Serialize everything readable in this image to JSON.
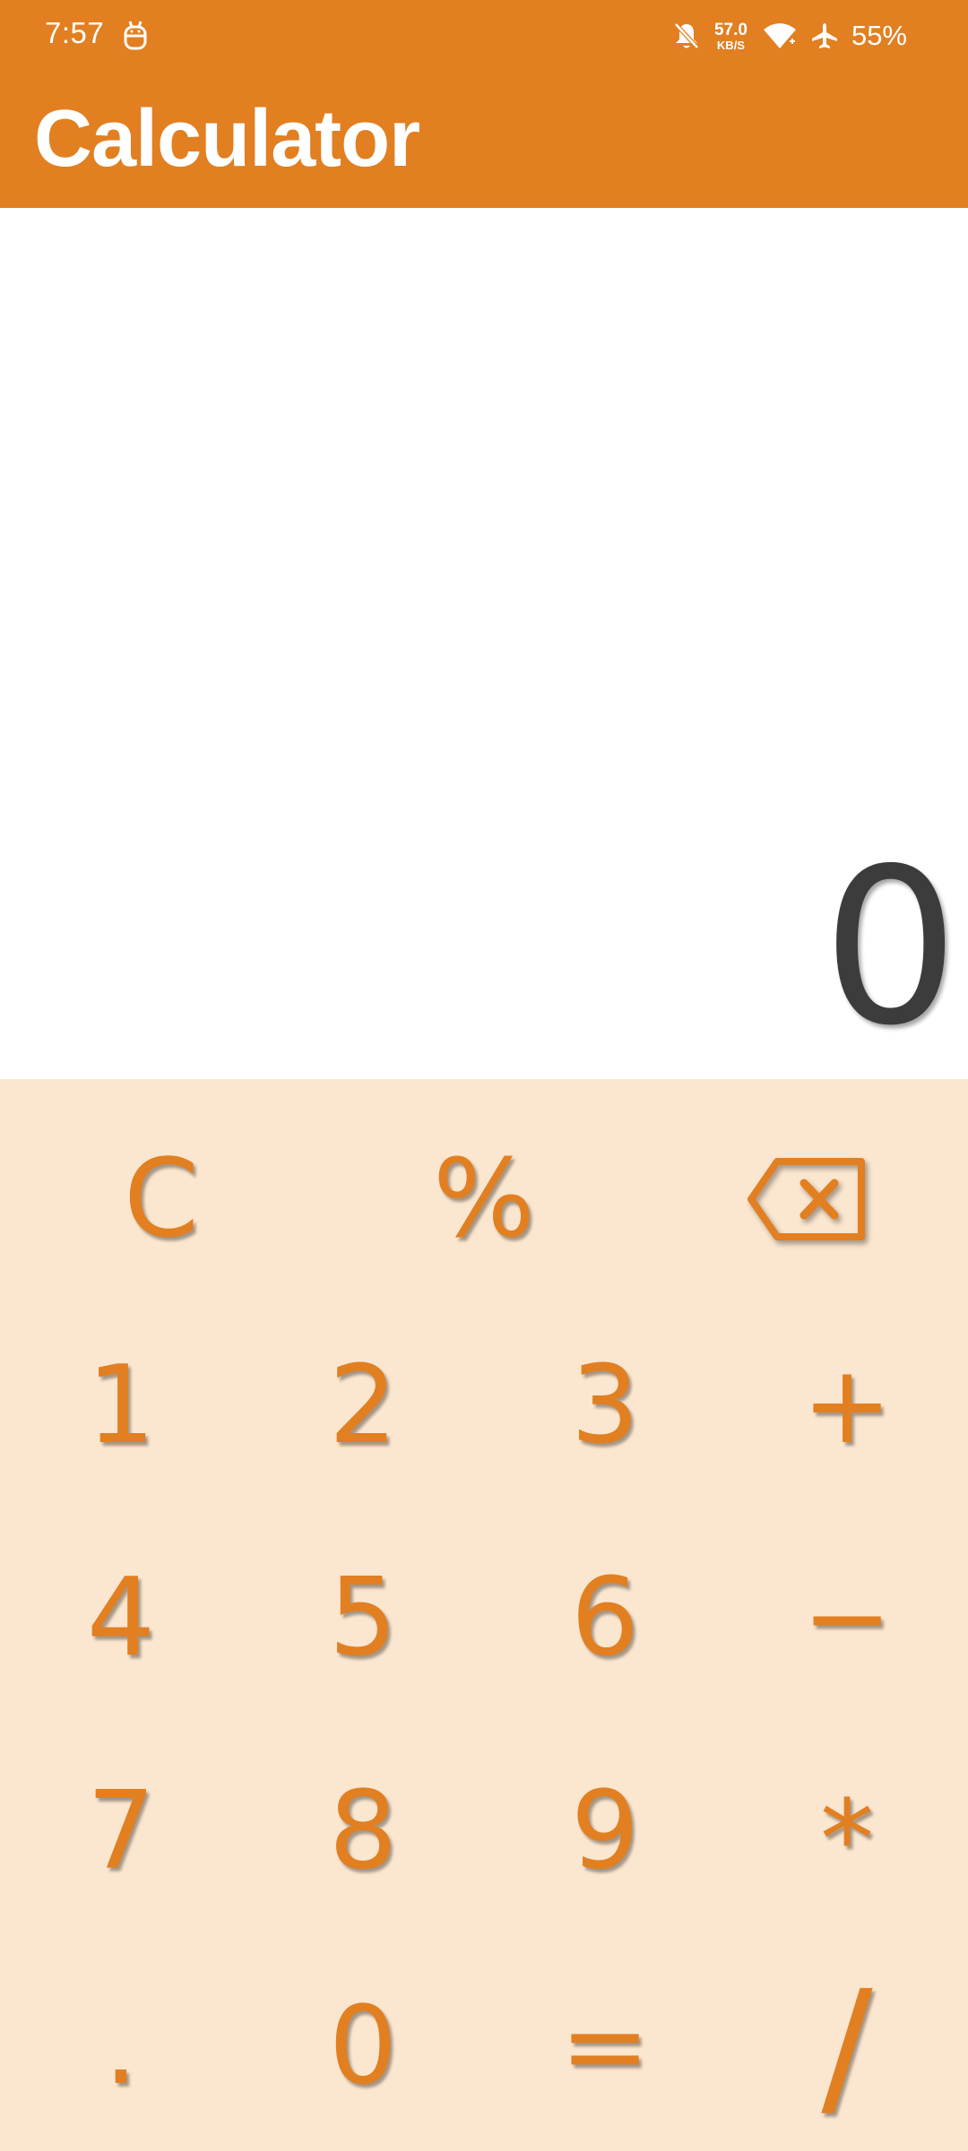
{
  "status_bar": {
    "time": "7:57",
    "debug_icon": "android-debug-icon",
    "net_speed_value": "57.0",
    "net_speed_unit": "KB/S",
    "icons": [
      "bell-off-icon",
      "wifi-icon",
      "airplane-icon"
    ],
    "battery": "55%"
  },
  "app": {
    "title": "Calculator",
    "accent_color": "#E17F21",
    "keypad_background": "#FBE6CF"
  },
  "display": {
    "value": "0"
  },
  "keypad": {
    "clear": "C",
    "percent": "%",
    "backspace_icon": "backspace-icon",
    "k1": "1",
    "k2": "2",
    "k3": "3",
    "plus": "+",
    "k4": "4",
    "k5": "5",
    "k6": "6",
    "minus": "−",
    "k7": "7",
    "k8": "8",
    "k9": "9",
    "multiply": "*",
    "decimal": ".",
    "k0": "0",
    "equals": "=",
    "divide": "/"
  }
}
